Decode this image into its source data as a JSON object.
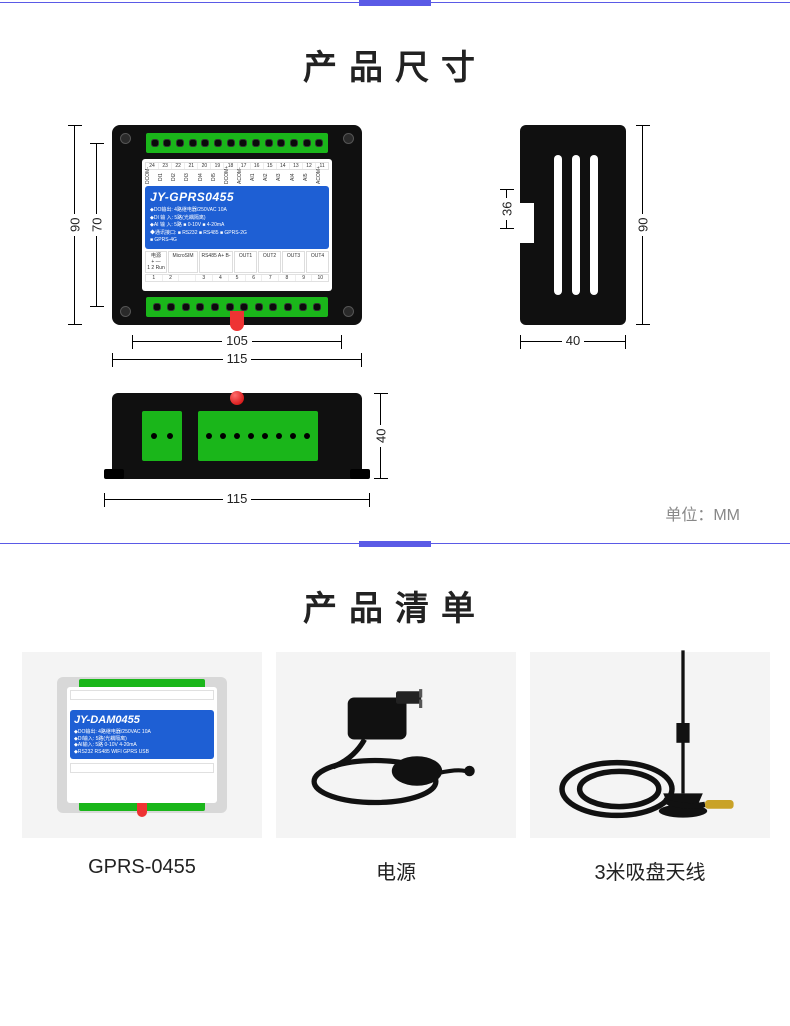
{
  "colors": {
    "divider": "#5a5ae6",
    "label_blue": "#1e5fd4",
    "terminal_green": "#1ab61a",
    "chassis_black": "#101010",
    "led_red": "#cc0000",
    "bg_grey": "#f4f4f4",
    "text_grey": "#888888"
  },
  "section_dims": {
    "title": "产品尺寸",
    "unit_label": "单位：MM",
    "model": "JY-GPRS0455",
    "specs": [
      "◆DO输出: 4路继电器/250VAC 10A",
      "◆DI 输 入: 5路(光耦隔离)",
      "◆AI 输 入: 5路 ■ 0-10V  ■ 4-20mA",
      "◆通讯接口: ■ RS232  ■ RS485  ■ GPRS-2G",
      "             ■ GPRS-4G"
    ],
    "top_pins_nums": [
      "24",
      "23",
      "22",
      "21",
      "20",
      "19",
      "18",
      "17",
      "16",
      "15",
      "14",
      "13",
      "12",
      "11"
    ],
    "top_pins_labels": [
      "DCOM-",
      "DI1",
      "DI2",
      "DI3",
      "DI4",
      "DI5",
      "DCOM+",
      "ACOM-",
      "AI1",
      "AI2",
      "AI3",
      "AI4",
      "AI5",
      "ACOM+"
    ],
    "bot_left": {
      "title": "电源",
      "sub": "+  —",
      "nums": "1 2",
      "run": "Run"
    },
    "bot_mid": [
      "MicroSIM",
      "RS485  A+  B-"
    ],
    "bot_out": [
      "OUT1",
      "OUT2",
      "OUT3",
      "OUT4"
    ],
    "bot_pins_nums": [
      "3",
      "4",
      "5",
      "6",
      "7",
      "8",
      "9",
      "10"
    ],
    "dimensions": {
      "front_w_inner": "105",
      "front_w_outer": "115",
      "front_h_inner": "70",
      "front_h_outer": "90",
      "side_w": "40",
      "side_h_outer": "90",
      "side_h_inner": "36",
      "bottom_w": "115",
      "bottom_h": "40"
    }
  },
  "section_list": {
    "title": "产品清单",
    "items": [
      {
        "caption": "GPRS-0455",
        "kind": "device",
        "model": "JY-DAM0455"
      },
      {
        "caption": "电源",
        "kind": "psu"
      },
      {
        "caption": "3米吸盘天线",
        "kind": "antenna"
      }
    ]
  }
}
